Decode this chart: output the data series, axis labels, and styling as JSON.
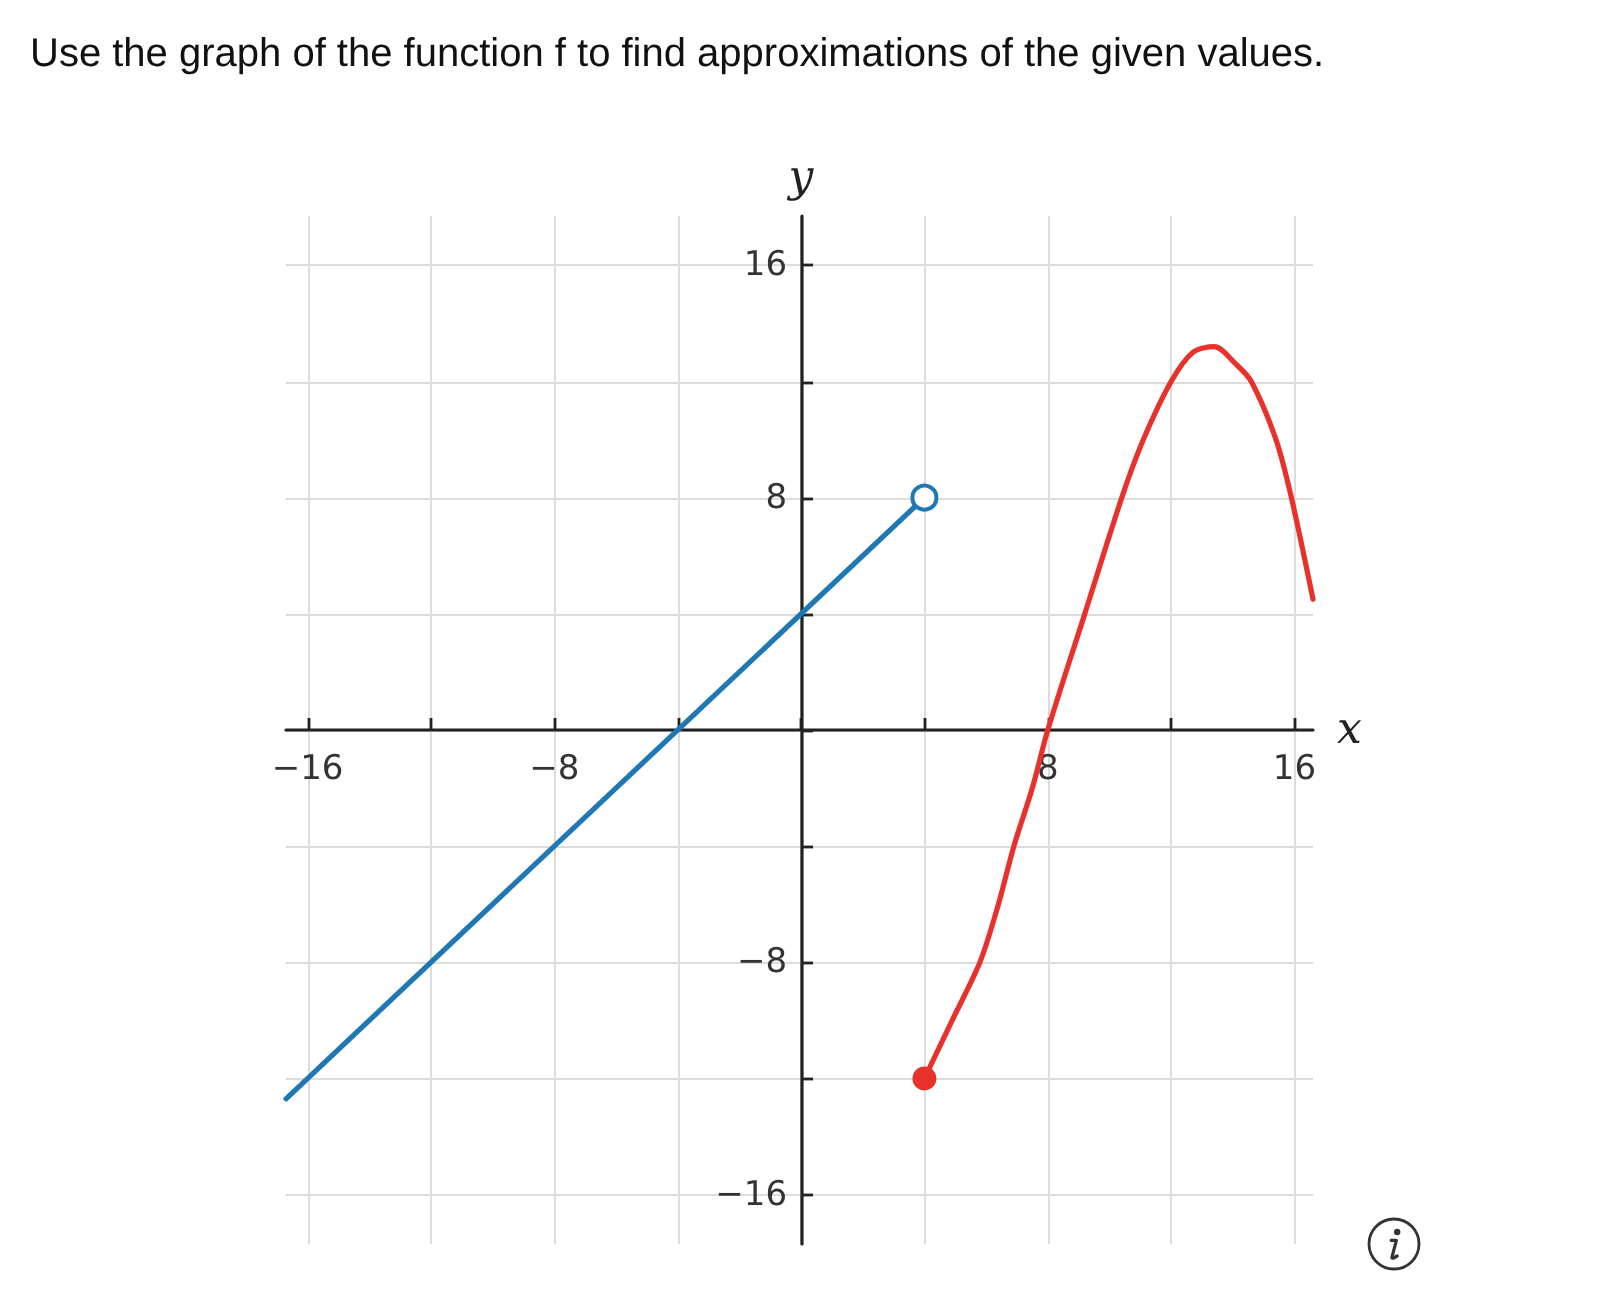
{
  "chart_data": {
    "type": "line",
    "title": "Use the graph of the function f to find approximations of the given values.",
    "xlabel": "x",
    "ylabel": "y",
    "xlim": [
      -16.7,
      16.6
    ],
    "ylim": [
      -17.7,
      17.7
    ],
    "xticks": [
      {
        "value": -16,
        "label": "−16"
      },
      {
        "value": -12,
        "label": null
      },
      {
        "value": -8,
        "label": "−8"
      },
      {
        "value": -4,
        "label": null
      },
      {
        "value": 0,
        "label": null
      },
      {
        "value": 4,
        "label": null
      },
      8,
      {
        "value": 12,
        "label": null
      },
      16
    ],
    "yticks": [
      {
        "value": -16,
        "label": "−16"
      },
      {
        "value": -12,
        "label": null
      },
      {
        "value": -8,
        "label": "−8"
      },
      {
        "value": -4,
        "label": null
      },
      {
        "value": 0,
        "label": null
      },
      {
        "value": 4,
        "label": null
      },
      8,
      {
        "value": 12,
        "label": null
      },
      16
    ],
    "grid": true,
    "series": [
      {
        "type": "line",
        "color": "#1f77b4",
        "marker": "none",
        "x": [
          -16.7,
          4
        ],
        "values": [
          -12.7,
          8
        ]
      },
      {
        "type": "line",
        "color": "#e8312a",
        "marker": "none",
        "x": [
          4,
          4.9,
          5.8,
          6.4,
          6.9,
          7.5,
          8,
          9.2,
          10.4,
          11.1,
          12,
          12.7,
          13.4,
          14.1,
          14.6,
          15.4,
          15.9,
          16.6
        ],
        "values": [
          -12,
          -10,
          -8,
          -6,
          -4,
          -2,
          0,
          4,
          8,
          10,
          12,
          13,
          13.2,
          12.6,
          12,
          10,
          8,
          4.5
        ]
      },
      {
        "type": "scatter",
        "color": "#1f77b4",
        "marker": "open circle",
        "x": [
          4
        ],
        "values": [
          8
        ]
      },
      {
        "type": "scatter",
        "color": "#e8312a",
        "marker": "circle",
        "x": [
          4
        ],
        "values": [
          -12
        ]
      }
    ]
  }
}
